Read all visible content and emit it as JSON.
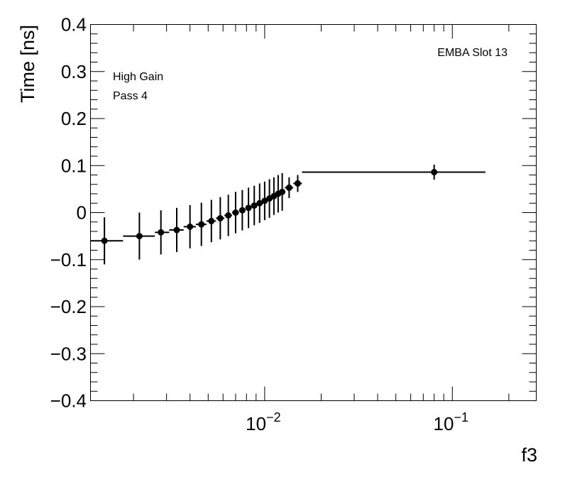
{
  "chart_data": {
    "type": "scatter",
    "xlabel": "f3",
    "ylabel": "Time [ns]",
    "xscale": "log",
    "xlim": [
      0.00118,
      0.28
    ],
    "ylim": [
      -0.4,
      0.4
    ],
    "grid": false,
    "yticks": [
      -0.4,
      -0.3,
      -0.2,
      -0.1,
      0,
      0.1,
      0.2,
      0.3,
      0.4
    ],
    "ytick_labels": [
      "−0.4",
      "−0.3",
      "−0.2",
      "−0.1",
      "0",
      "0.1",
      "0.2",
      "0.3",
      "0.4"
    ],
    "xticks": [
      {
        "value": 0.01,
        "base": "10",
        "exp": "−2"
      },
      {
        "value": 0.1,
        "base": "10",
        "exp": "−1"
      }
    ],
    "annotations": {
      "top_right": "EMBA Slot 13",
      "line1": "High Gain",
      "line2": "Pass 4"
    },
    "series": [
      {
        "points": [
          {
            "x": 0.0014,
            "y": -0.06,
            "xlo": 0.00118,
            "xhi": 0.00176,
            "yerr": 0.05
          },
          {
            "x": 0.00215,
            "y": -0.05,
            "xlo": 0.00176,
            "xhi": 0.0026,
            "yerr": 0.05
          },
          {
            "x": 0.0028,
            "y": -0.042,
            "xlo": 0.0026,
            "xhi": 0.0031,
            "yerr": 0.047
          },
          {
            "x": 0.0034,
            "y": -0.037,
            "xlo": 0.0031,
            "xhi": 0.0037,
            "yerr": 0.047
          },
          {
            "x": 0.004,
            "y": -0.03,
            "xlo": 0.0037,
            "xhi": 0.0043,
            "yerr": 0.046
          },
          {
            "x": 0.0046,
            "y": -0.025,
            "xlo": 0.0043,
            "xhi": 0.0049,
            "yerr": 0.046
          },
          {
            "x": 0.0052,
            "y": -0.018,
            "xlo": 0.0049,
            "xhi": 0.0055,
            "yerr": 0.045
          },
          {
            "x": 0.0058,
            "y": -0.012,
            "xlo": 0.0055,
            "xhi": 0.0061,
            "yerr": 0.045
          },
          {
            "x": 0.0064,
            "y": -0.006,
            "xlo": 0.0061,
            "xhi": 0.0067,
            "yerr": 0.044
          },
          {
            "x": 0.007,
            "y": 0.0,
            "xlo": 0.0067,
            "xhi": 0.0073,
            "yerr": 0.044
          },
          {
            "x": 0.0076,
            "y": 0.005,
            "xlo": 0.0073,
            "xhi": 0.0079,
            "yerr": 0.043
          },
          {
            "x": 0.0082,
            "y": 0.01,
            "xlo": 0.0079,
            "xhi": 0.0085,
            "yerr": 0.043
          },
          {
            "x": 0.0088,
            "y": 0.015,
            "xlo": 0.0085,
            "xhi": 0.0091,
            "yerr": 0.042
          },
          {
            "x": 0.0094,
            "y": 0.02,
            "xlo": 0.0091,
            "xhi": 0.0097,
            "yerr": 0.042
          },
          {
            "x": 0.01,
            "y": 0.025,
            "xlo": 0.0097,
            "xhi": 0.0103,
            "yerr": 0.041
          },
          {
            "x": 0.0106,
            "y": 0.03,
            "xlo": 0.0103,
            "xhi": 0.0109,
            "yerr": 0.041
          },
          {
            "x": 0.0112,
            "y": 0.035,
            "xlo": 0.0109,
            "xhi": 0.0115,
            "yerr": 0.04
          },
          {
            "x": 0.0118,
            "y": 0.04,
            "xlo": 0.0115,
            "xhi": 0.0121,
            "yerr": 0.04
          },
          {
            "x": 0.0124,
            "y": 0.044,
            "xlo": 0.0121,
            "xhi": 0.0128,
            "yerr": 0.04
          },
          {
            "x": 0.0135,
            "y": 0.053,
            "xlo": 0.0128,
            "xhi": 0.0142,
            "yerr": 0.022
          },
          {
            "x": 0.015,
            "y": 0.062,
            "xlo": 0.0142,
            "xhi": 0.0158,
            "yerr": 0.018
          },
          {
            "x": 0.08,
            "y": 0.086,
            "xlo": 0.0158,
            "xhi": 0.15,
            "yerr": 0.016
          }
        ]
      }
    ]
  }
}
